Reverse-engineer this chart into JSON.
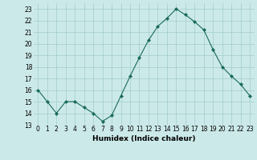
{
  "x": [
    0,
    1,
    2,
    3,
    4,
    5,
    6,
    7,
    8,
    9,
    10,
    11,
    12,
    13,
    14,
    15,
    16,
    17,
    18,
    19,
    20,
    21,
    22,
    23
  ],
  "y": [
    16,
    15,
    14,
    15,
    15,
    14.5,
    14,
    13.3,
    13.8,
    15.5,
    17.2,
    18.8,
    20.3,
    21.5,
    22.2,
    23.0,
    22.5,
    21.9,
    21.2,
    19.5,
    18.0,
    17.2,
    16.5,
    15.5
  ],
  "line_color": "#1a6b5a",
  "marker": "D",
  "marker_size": 2,
  "bg_color": "#cce9e9",
  "grid_color": "#a0cccc",
  "xlabel": "Humidex (Indice chaleur)",
  "xlim": [
    -0.5,
    23.5
  ],
  "ylim": [
    13,
    23.5
  ],
  "yticks": [
    13,
    14,
    15,
    16,
    17,
    18,
    19,
    20,
    21,
    22,
    23
  ],
  "xticks": [
    0,
    1,
    2,
    3,
    4,
    5,
    6,
    7,
    8,
    9,
    10,
    11,
    12,
    13,
    14,
    15,
    16,
    17,
    18,
    19,
    20,
    21,
    22,
    23
  ]
}
